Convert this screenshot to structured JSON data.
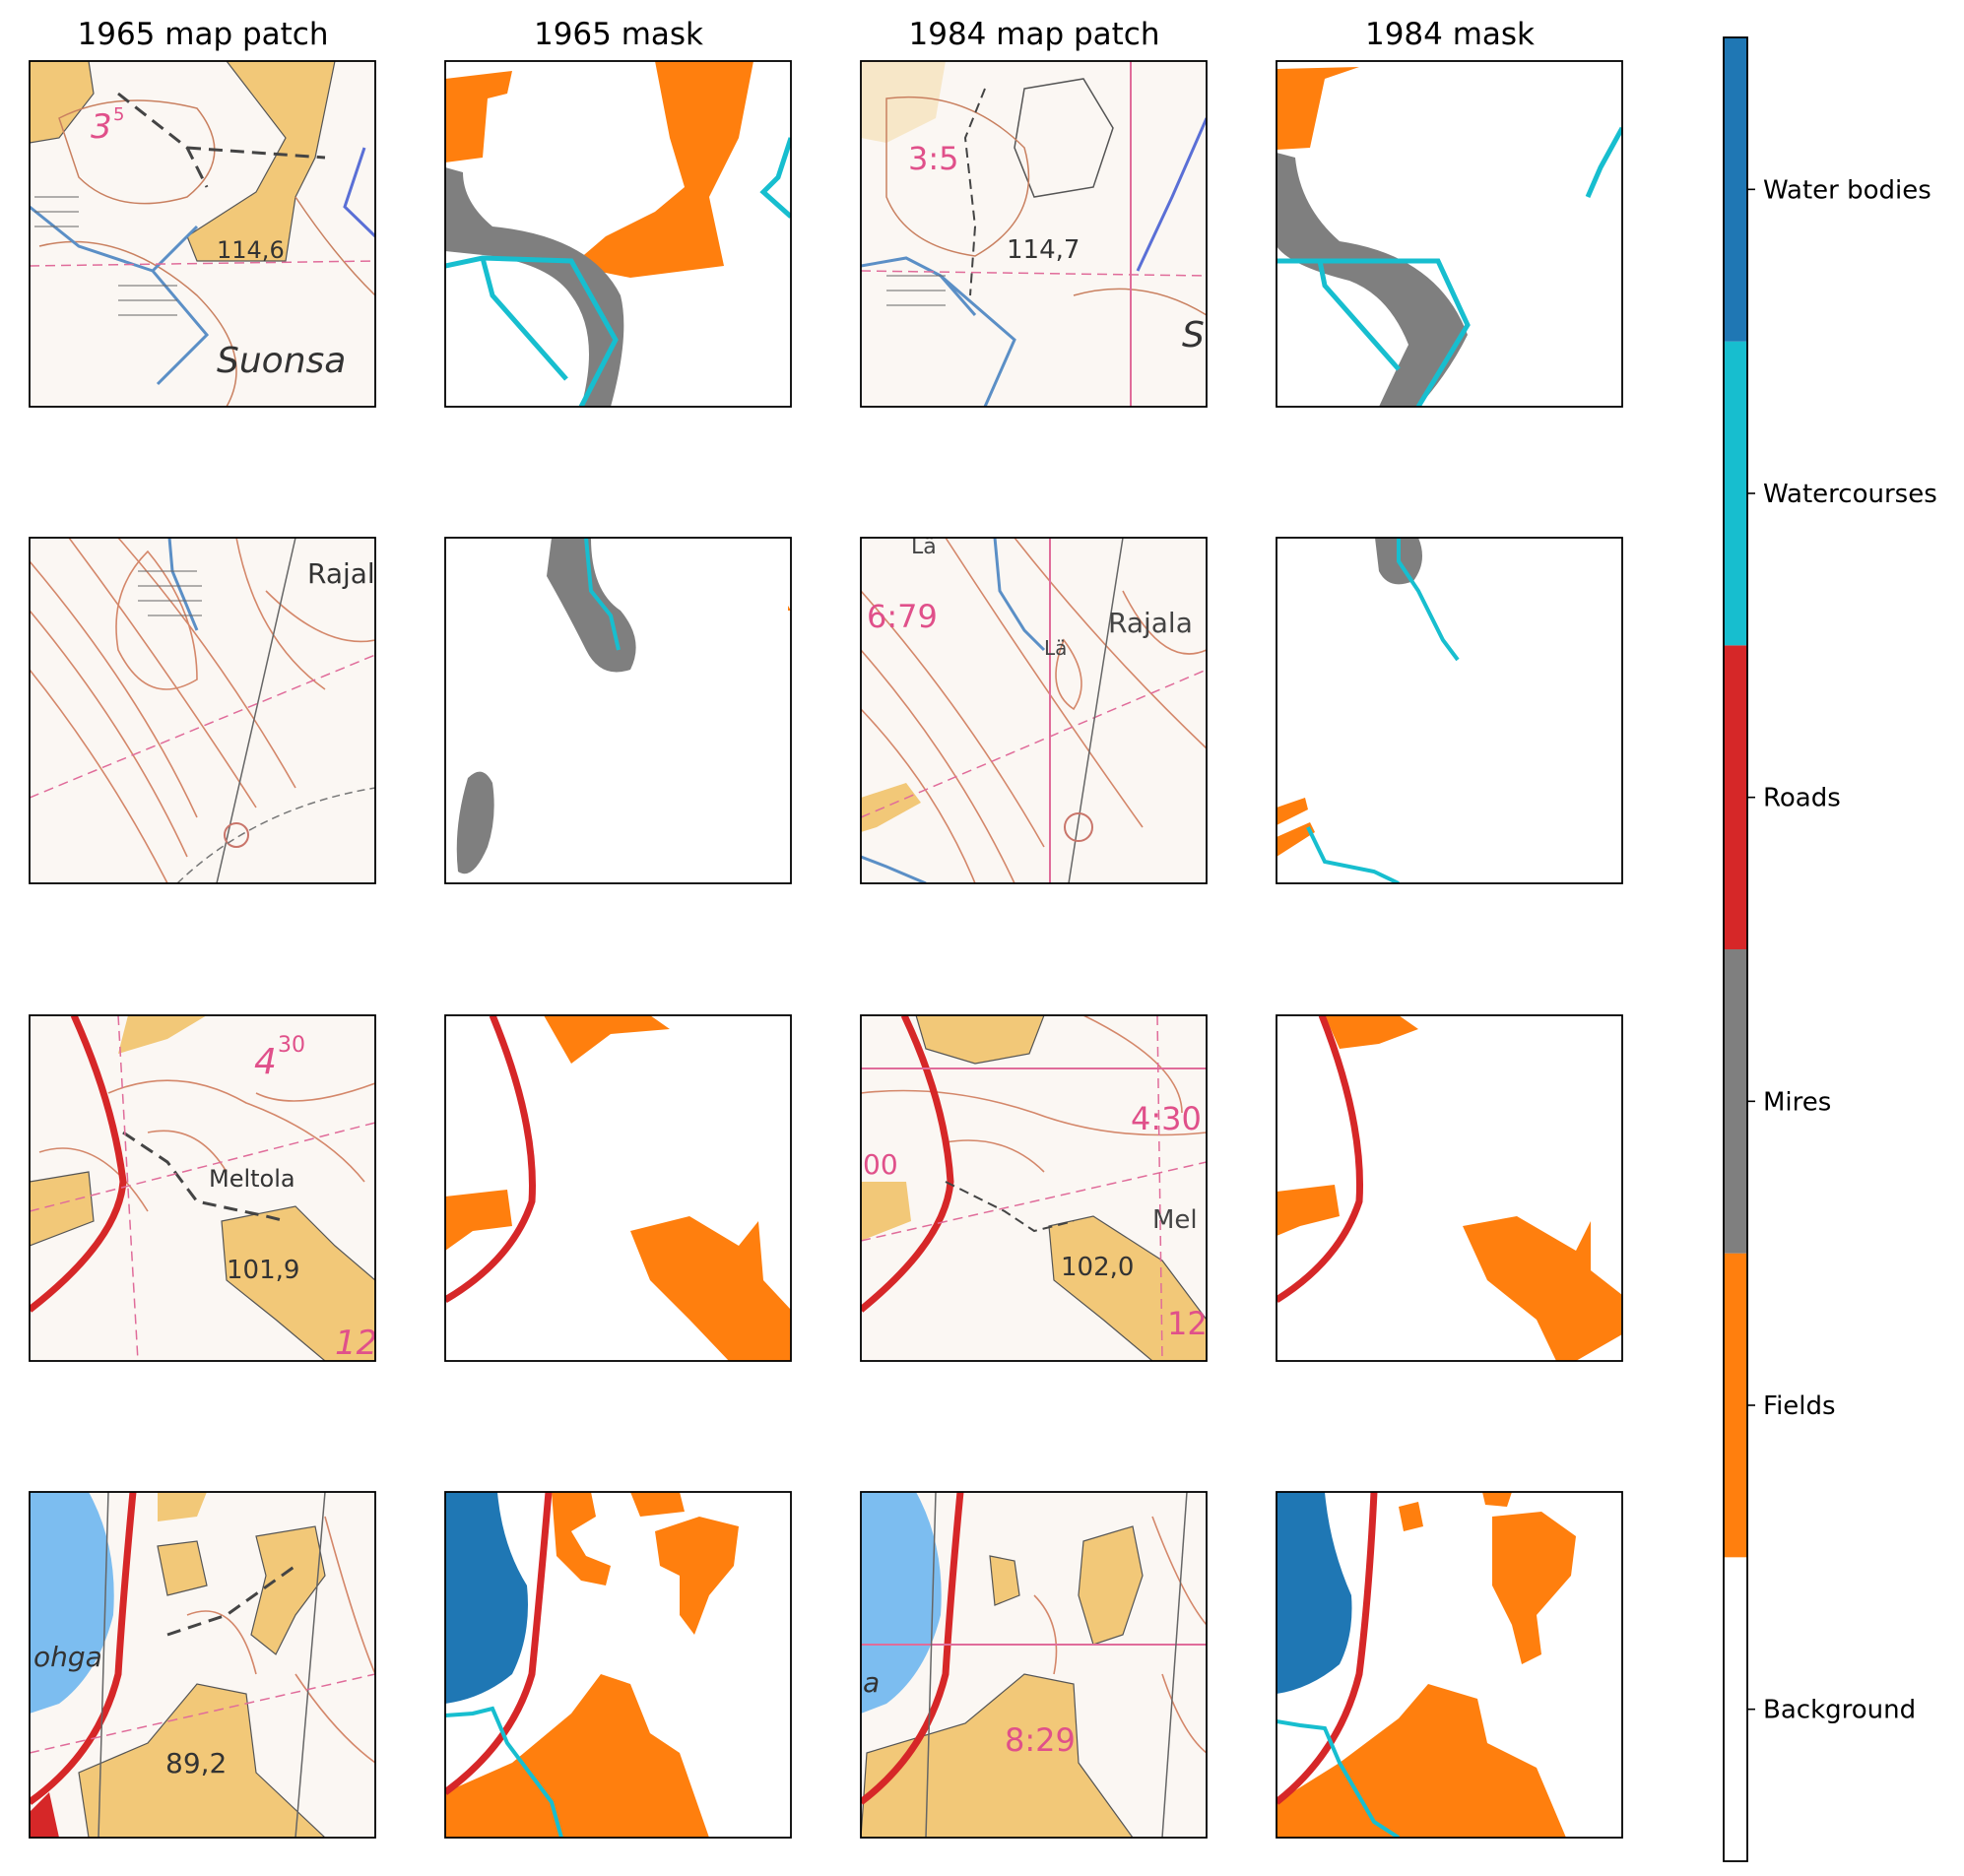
{
  "chart_data": {
    "type": "image-grid-with-categorical-colorbar",
    "column_titles": [
      "1965 map patch",
      "1965 mask",
      "1984 map patch",
      "1984 mask"
    ],
    "rows": 4,
    "map_text": {
      "r0_1965_spot": "3",
      "r0_1965_spot_sup": "5",
      "r0_1965_elev": "114,6",
      "r0_1965_name": "Suonsa",
      "r0_1984_spot": "3:5",
      "r0_1984_elev": "114,7",
      "r0_1984_name": "S",
      "r1_1965_name": "Rajal",
      "r1_1984_spot": "6:79",
      "r1_1984_la1": "Lä",
      "r1_1984_la2": "Lä",
      "r1_1984_name": "Rajala",
      "r2_1965_spot": "4",
      "r2_1965_spot_sup": "30",
      "r2_1965_name": "Meltola",
      "r2_1965_elev": "101,9",
      "r2_1965_num": "12",
      "r2_1984_spot": "4:30",
      "r2_1984_name": "Mel",
      "r2_1984_elev": "102,0",
      "r2_1984_num": "12",
      "r2_1984_left": "00",
      "r3_1965_lake": "ohga",
      "r3_1965_elev": "89,2",
      "r3_1984_spot": "8:29",
      "r3_1984_lake": "a"
    },
    "colorbar": {
      "categories": [
        "Background",
        "Fields",
        "Mires",
        "Roads",
        "Watercourses",
        "Water bodies"
      ],
      "colors": [
        "#ffffff",
        "#ff7f0e",
        "#7f7f7f",
        "#d62728",
        "#17becf",
        "#1f77b4"
      ]
    }
  }
}
